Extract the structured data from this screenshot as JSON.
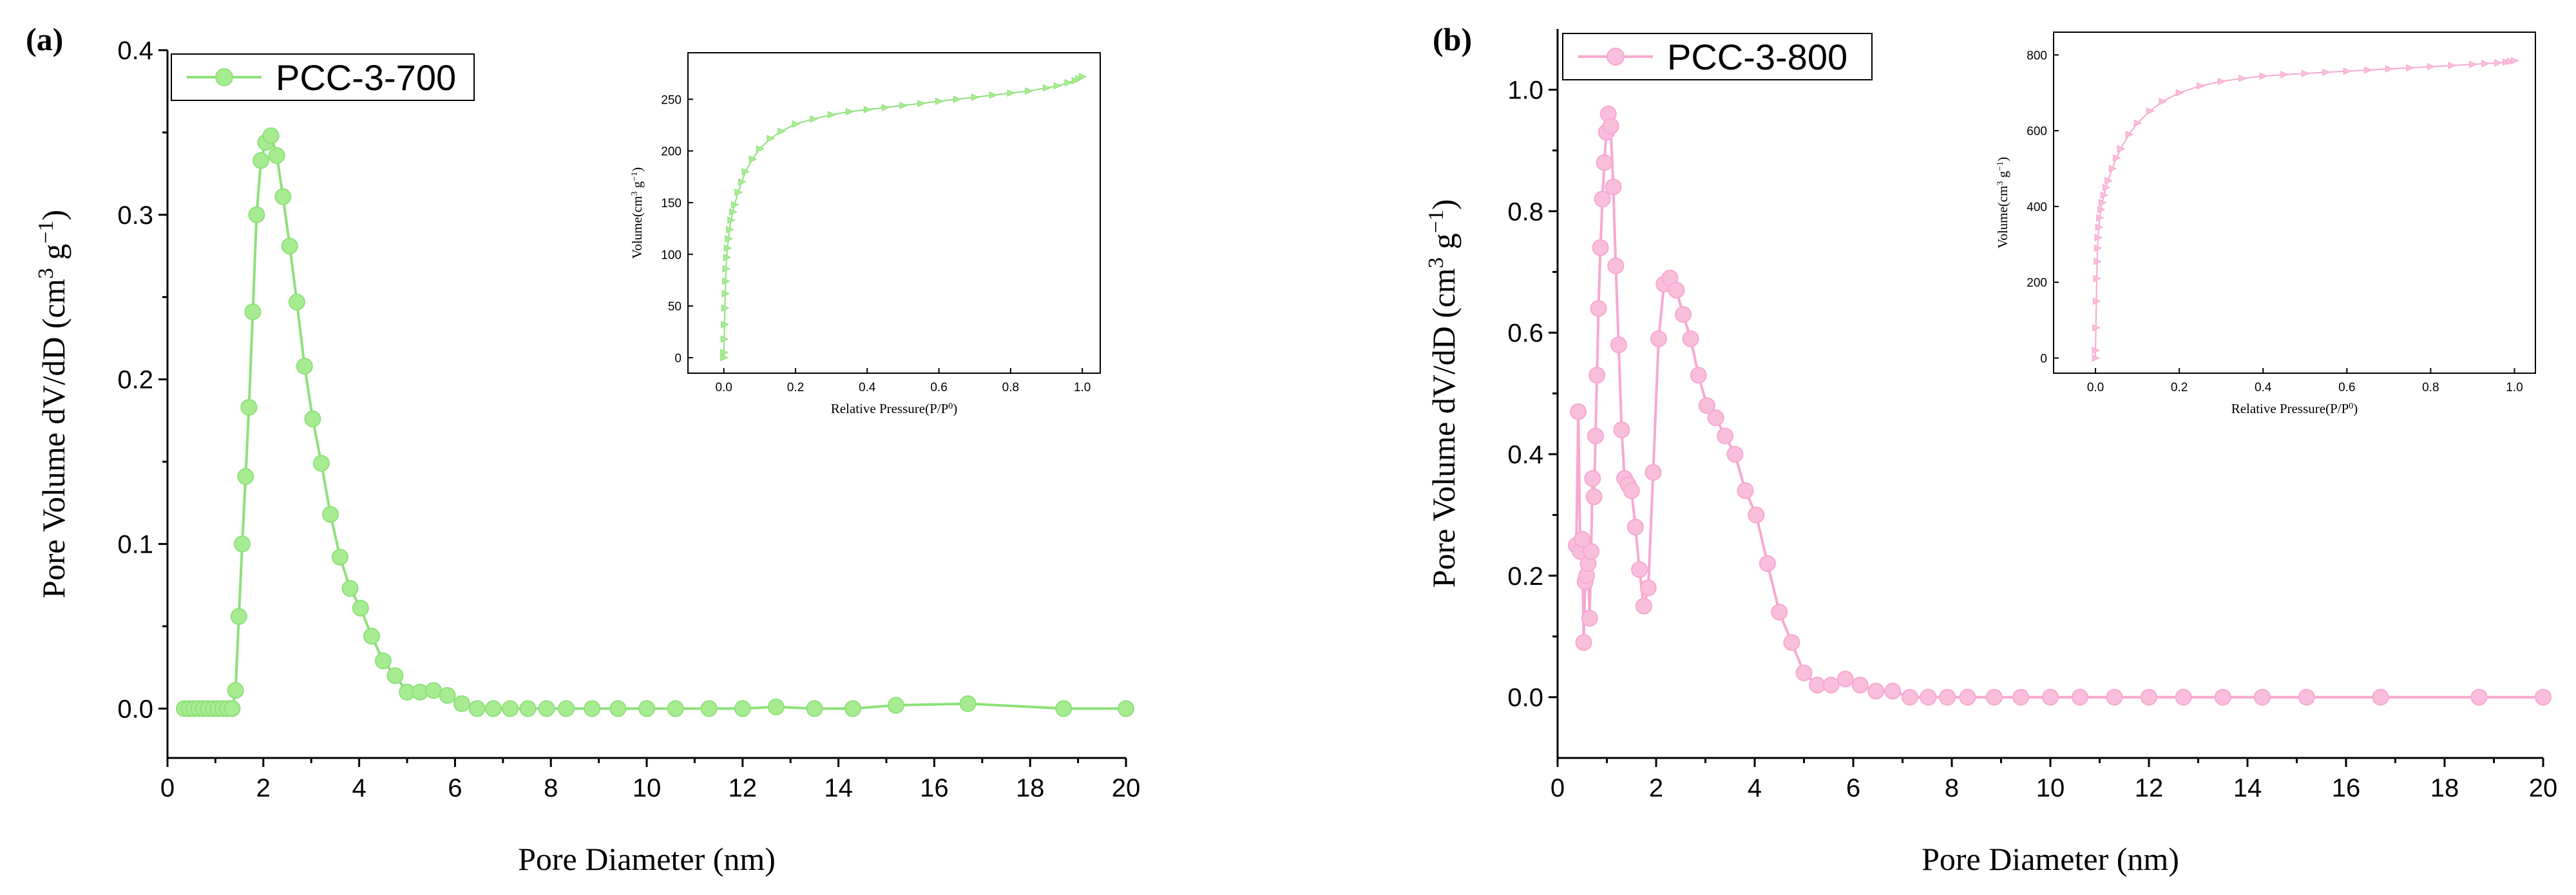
{
  "chart_data": [
    {
      "type": "line",
      "panel": "(a)",
      "xlabel": "Pore Diameter (nm)",
      "ylabel": "Pore Volume dV/dD (cm3 g-1)",
      "ylabel_parts": [
        "Pore Volume dV/dD (cm",
        "3",
        " g",
        "−1",
        ")"
      ],
      "xlim": [
        0,
        20
      ],
      "ylim": [
        -0.03,
        0.4
      ],
      "xticks": [
        0,
        2,
        4,
        6,
        8,
        10,
        12,
        14,
        16,
        18,
        20
      ],
      "yticks": [
        0.0,
        0.1,
        0.2,
        0.3,
        0.4
      ],
      "ytick_labels": [
        "0.0",
        "0.1",
        "0.2",
        "0.3",
        "0.4"
      ],
      "color": "#8ee07a",
      "marker_fill": "#a8ec92",
      "series": [
        {
          "name": "PCC-3-700",
          "x": [
            0.35,
            0.45,
            0.55,
            0.65,
            0.75,
            0.85,
            0.95,
            1.05,
            1.15,
            1.25,
            1.35,
            1.42,
            1.49,
            1.56,
            1.63,
            1.7,
            1.78,
            1.86,
            1.95,
            2.05,
            2.16,
            2.28,
            2.41,
            2.55,
            2.7,
            2.86,
            3.03,
            3.21,
            3.4,
            3.6,
            3.81,
            4.03,
            4.26,
            4.5,
            4.75,
            5.0,
            5.27,
            5.55,
            5.84,
            6.14,
            6.46,
            6.8,
            7.15,
            7.52,
            7.91,
            8.32,
            8.86,
            9.4,
            10.0,
            10.6,
            11.3,
            12.0,
            12.7,
            13.5,
            14.3,
            15.2,
            16.7,
            18.7,
            20.0
          ],
          "y": [
            0.0,
            0.0,
            0.0,
            0.0,
            0.0,
            0.0,
            0.0,
            0.0,
            0.0,
            0.0,
            0.0,
            0.011,
            0.056,
            0.1,
            0.141,
            0.183,
            0.241,
            0.3,
            0.333,
            0.344,
            0.348,
            0.336,
            0.311,
            0.281,
            0.247,
            0.208,
            0.176,
            0.149,
            0.118,
            0.092,
            0.073,
            0.061,
            0.044,
            0.029,
            0.02,
            0.01,
            0.01,
            0.011,
            0.008,
            0.003,
            0.0,
            0.0,
            0.0,
            0.0,
            0.0,
            0.0,
            0.0,
            0.0,
            0.0,
            0.0,
            0.0,
            0.0,
            0.001,
            0.0,
            0.0,
            0.002,
            0.003,
            0.0,
            0.0
          ]
        }
      ],
      "inset": {
        "xlabel": "Relative Pressure(P/P0)",
        "xlabel_parts": [
          "Relative Pressure(P/P",
          "0",
          ")"
        ],
        "ylabel": "Volume(cm3 g-1)",
        "ylabel_parts": [
          "Volume(cm",
          "3",
          " g",
          "−1",
          ")"
        ],
        "xlim": [
          -0.1,
          1.05
        ],
        "ylim": [
          -15,
          295
        ],
        "xticks": [
          0.0,
          0.2,
          0.4,
          0.6,
          0.8,
          1.0
        ],
        "xtick_labels": [
          "0.0",
          "0.2",
          "0.4",
          "0.6",
          "0.8",
          "1.0"
        ],
        "yticks": [
          0,
          50,
          100,
          150,
          200,
          250
        ],
        "ytick_labels": [
          "0",
          "50",
          "100",
          "150",
          "200",
          "250"
        ],
        "x": [
          0.0,
          0.0,
          0.001,
          0.002,
          0.003,
          0.004,
          0.005,
          0.006,
          0.008,
          0.01,
          0.013,
          0.016,
          0.02,
          0.025,
          0.03,
          0.04,
          0.05,
          0.06,
          0.08,
          0.1,
          0.13,
          0.16,
          0.2,
          0.25,
          0.3,
          0.35,
          0.4,
          0.45,
          0.5,
          0.55,
          0.6,
          0.65,
          0.7,
          0.75,
          0.8,
          0.85,
          0.9,
          0.93,
          0.96,
          0.98,
          0.99,
          1.0
        ],
        "y": [
          0,
          5,
          18,
          32,
          48,
          62,
          74,
          86,
          97,
          106,
          115,
          124,
          133,
          141,
          148,
          160,
          170,
          180,
          192,
          202,
          212,
          219,
          226,
          231,
          235,
          238,
          240,
          242,
          244,
          246,
          248,
          250,
          252,
          254,
          256,
          258,
          261,
          263,
          266,
          268,
          270,
          272
        ]
      }
    },
    {
      "type": "line",
      "panel": "(b)",
      "xlabel": "Pore Diameter (nm)",
      "ylabel": "Pore Volume dV/dD (cm3 g-1)",
      "ylabel_parts": [
        "Pore Volume dV/dD (cm",
        "3",
        " g",
        "−1",
        ")"
      ],
      "xlim": [
        0,
        20
      ],
      "ylim": [
        -0.1,
        1.1
      ],
      "xticks": [
        0,
        2,
        4,
        6,
        8,
        10,
        12,
        14,
        16,
        18,
        20
      ],
      "yticks": [
        0.0,
        0.2,
        0.4,
        0.6,
        0.8,
        1.0
      ],
      "ytick_labels": [
        "0.0",
        "0.2",
        "0.4",
        "0.6",
        "0.8",
        "1.0"
      ],
      "color": "#f7a8d0",
      "marker_fill": "#f9bedc",
      "series": [
        {
          "name": "PCC-3-800",
          "x": [
            0.38,
            0.42,
            0.46,
            0.5,
            0.53,
            0.56,
            0.59,
            0.62,
            0.65,
            0.68,
            0.71,
            0.74,
            0.77,
            0.8,
            0.83,
            0.87,
            0.91,
            0.95,
            0.99,
            1.03,
            1.08,
            1.13,
            1.18,
            1.24,
            1.3,
            1.36,
            1.43,
            1.5,
            1.58,
            1.66,
            1.75,
            1.84,
            1.94,
            2.05,
            2.16,
            2.28,
            2.41,
            2.55,
            2.7,
            2.86,
            3.03,
            3.21,
            3.4,
            3.6,
            3.81,
            4.03,
            4.26,
            4.5,
            4.75,
            5.0,
            5.27,
            5.55,
            5.84,
            6.14,
            6.46,
            6.8,
            7.15,
            7.52,
            7.91,
            8.32,
            8.86,
            9.4,
            10.0,
            10.6,
            11.3,
            12.0,
            12.7,
            13.5,
            14.3,
            15.2,
            16.7,
            18.7,
            20.0
          ],
          "y": [
            0.25,
            0.47,
            0.24,
            0.26,
            0.09,
            0.19,
            0.2,
            0.22,
            0.13,
            0.24,
            0.36,
            0.33,
            0.43,
            0.53,
            0.64,
            0.74,
            0.82,
            0.88,
            0.93,
            0.96,
            0.94,
            0.84,
            0.71,
            0.58,
            0.44,
            0.36,
            0.35,
            0.34,
            0.28,
            0.21,
            0.15,
            0.18,
            0.37,
            0.59,
            0.68,
            0.69,
            0.67,
            0.63,
            0.59,
            0.53,
            0.48,
            0.46,
            0.43,
            0.4,
            0.34,
            0.3,
            0.22,
            0.14,
            0.09,
            0.04,
            0.02,
            0.02,
            0.03,
            0.02,
            0.01,
            0.01,
            0.0,
            0.0,
            0.0,
            0.0,
            0.0,
            0.0,
            0.0,
            0.0,
            0.0,
            0.0,
            0.0,
            0.0,
            0.0,
            0.0,
            0.0,
            0.0,
            0.0
          ]
        }
      ],
      "inset": {
        "xlabel": "Relative Pressure(P/P0)",
        "xlabel_parts": [
          "Relative Pressure(P/P",
          "0",
          ")"
        ],
        "ylabel": "Volume(cm3 g-1)",
        "ylabel_parts": [
          "Volume(cm",
          "3",
          " g",
          "−1",
          ")"
        ],
        "xlim": [
          -0.1,
          1.05
        ],
        "ylim": [
          -40,
          860
        ],
        "xticks": [
          0.0,
          0.2,
          0.4,
          0.6,
          0.8,
          1.0
        ],
        "xtick_labels": [
          "0.0",
          "0.2",
          "0.4",
          "0.6",
          "0.8",
          "1.0"
        ],
        "yticks": [
          0,
          200,
          400,
          600,
          800
        ],
        "ytick_labels": [
          "0",
          "200",
          "400",
          "600",
          "800"
        ],
        "x": [
          0.0,
          0.0,
          0.001,
          0.002,
          0.003,
          0.004,
          0.005,
          0.006,
          0.008,
          0.01,
          0.013,
          0.016,
          0.02,
          0.025,
          0.03,
          0.04,
          0.05,
          0.06,
          0.08,
          0.1,
          0.13,
          0.16,
          0.2,
          0.25,
          0.3,
          0.35,
          0.4,
          0.45,
          0.5,
          0.55,
          0.6,
          0.65,
          0.7,
          0.75,
          0.8,
          0.85,
          0.9,
          0.93,
          0.96,
          0.98,
          0.99,
          1.0
        ],
        "y": [
          0,
          20,
          80,
          150,
          210,
          255,
          290,
          318,
          345,
          370,
          392,
          410,
          430,
          450,
          468,
          500,
          528,
          552,
          590,
          620,
          652,
          677,
          700,
          718,
          730,
          738,
          744,
          748,
          751,
          754,
          757,
          760,
          763,
          766,
          769,
          772,
          775,
          777,
          779,
          781,
          783,
          785
        ]
      }
    }
  ]
}
